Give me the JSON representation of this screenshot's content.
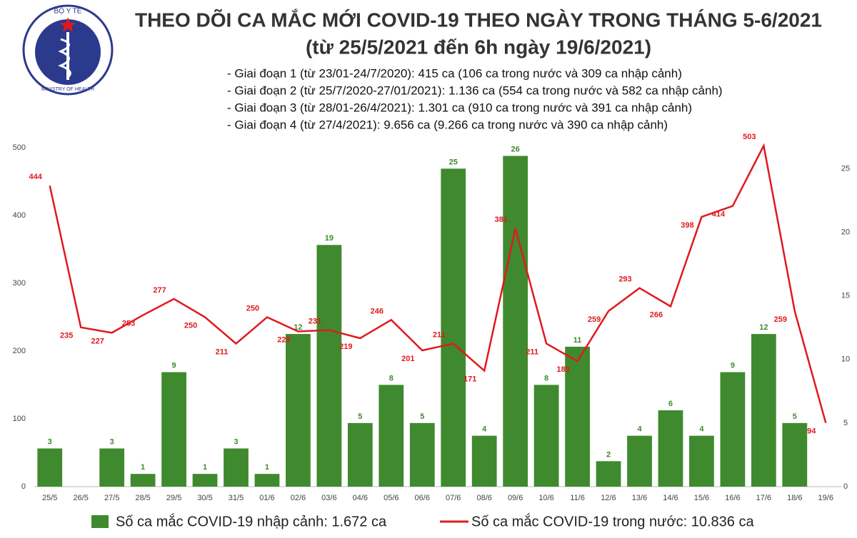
{
  "logo": {
    "top": "BỘ Y TẾ",
    "bottom": "MINISTRY OF HEALTH"
  },
  "chart_data": {
    "type": "bar-line",
    "title": "THEO DÕI CA MẮC MỚI COVID-19 THEO NGÀY TRONG THÁNG 5-6/2021",
    "subtitle": "(từ 25/5/2021 đến 6h ngày 19/6/2021)",
    "notes": [
      "- Giai đoạn 1 (từ 23/01-24/7/2020): 415 ca (106 ca trong nước và 309 ca nhập cảnh)",
      "- Giai đoạn 2 (từ 25/7/2020-27/01/2021): 1.136 ca (554 ca trong nước và 582 ca nhập cảnh)",
      "- Giai đoạn 3 (từ 28/01-26/4/2021): 1.301 ca (910 ca trong nước và 391 ca nhập cảnh)",
      "- Giai đoạn 4 (từ 27/4/2021): 9.656 ca (9.266 ca trong nước và 390 ca nhập cảnh)"
    ],
    "categories": [
      "25/5",
      "26/5",
      "27/5",
      "28/5",
      "29/5",
      "30/5",
      "31/5",
      "01/6",
      "02/6",
      "03/6",
      "04/6",
      "05/6",
      "06/6",
      "07/6",
      "08/6",
      "09/6",
      "10/6",
      "11/6",
      "12/6",
      "13/6",
      "14/6",
      "15/6",
      "16/6",
      "17/6",
      "18/6",
      "19/6"
    ],
    "series": [
      {
        "name": "Số ca mắc COVID-19 nhập cảnh: 1.672 ca",
        "kind": "bar",
        "axis": "y2",
        "color": "#3f8a2e",
        "values": [
          3,
          null,
          3,
          1,
          9,
          1,
          3,
          1,
          12,
          19,
          5,
          8,
          5,
          25,
          4,
          26,
          8,
          11,
          2,
          4,
          6,
          4,
          9,
          12,
          5,
          null
        ]
      },
      {
        "name": "Số ca mắc COVID-19 trong nước: 10.836 ca",
        "kind": "line",
        "axis": "y",
        "color": "#e0191e",
        "values": [
          444,
          235,
          227,
          253,
          277,
          250,
          211,
          250,
          229,
          231,
          219,
          246,
          201,
          211,
          171,
          381,
          211,
          185,
          259,
          293,
          266,
          398,
          414,
          503,
          259,
          94
        ]
      }
    ],
    "ylim": [
      0,
      518
    ],
    "yticks": [
      0,
      100,
      200,
      300,
      400,
      500
    ],
    "y2lim": [
      0,
      27.6
    ],
    "y2ticks": [
      0,
      5,
      10,
      15,
      20,
      25
    ],
    "grid": false,
    "legend": "bottom"
  }
}
